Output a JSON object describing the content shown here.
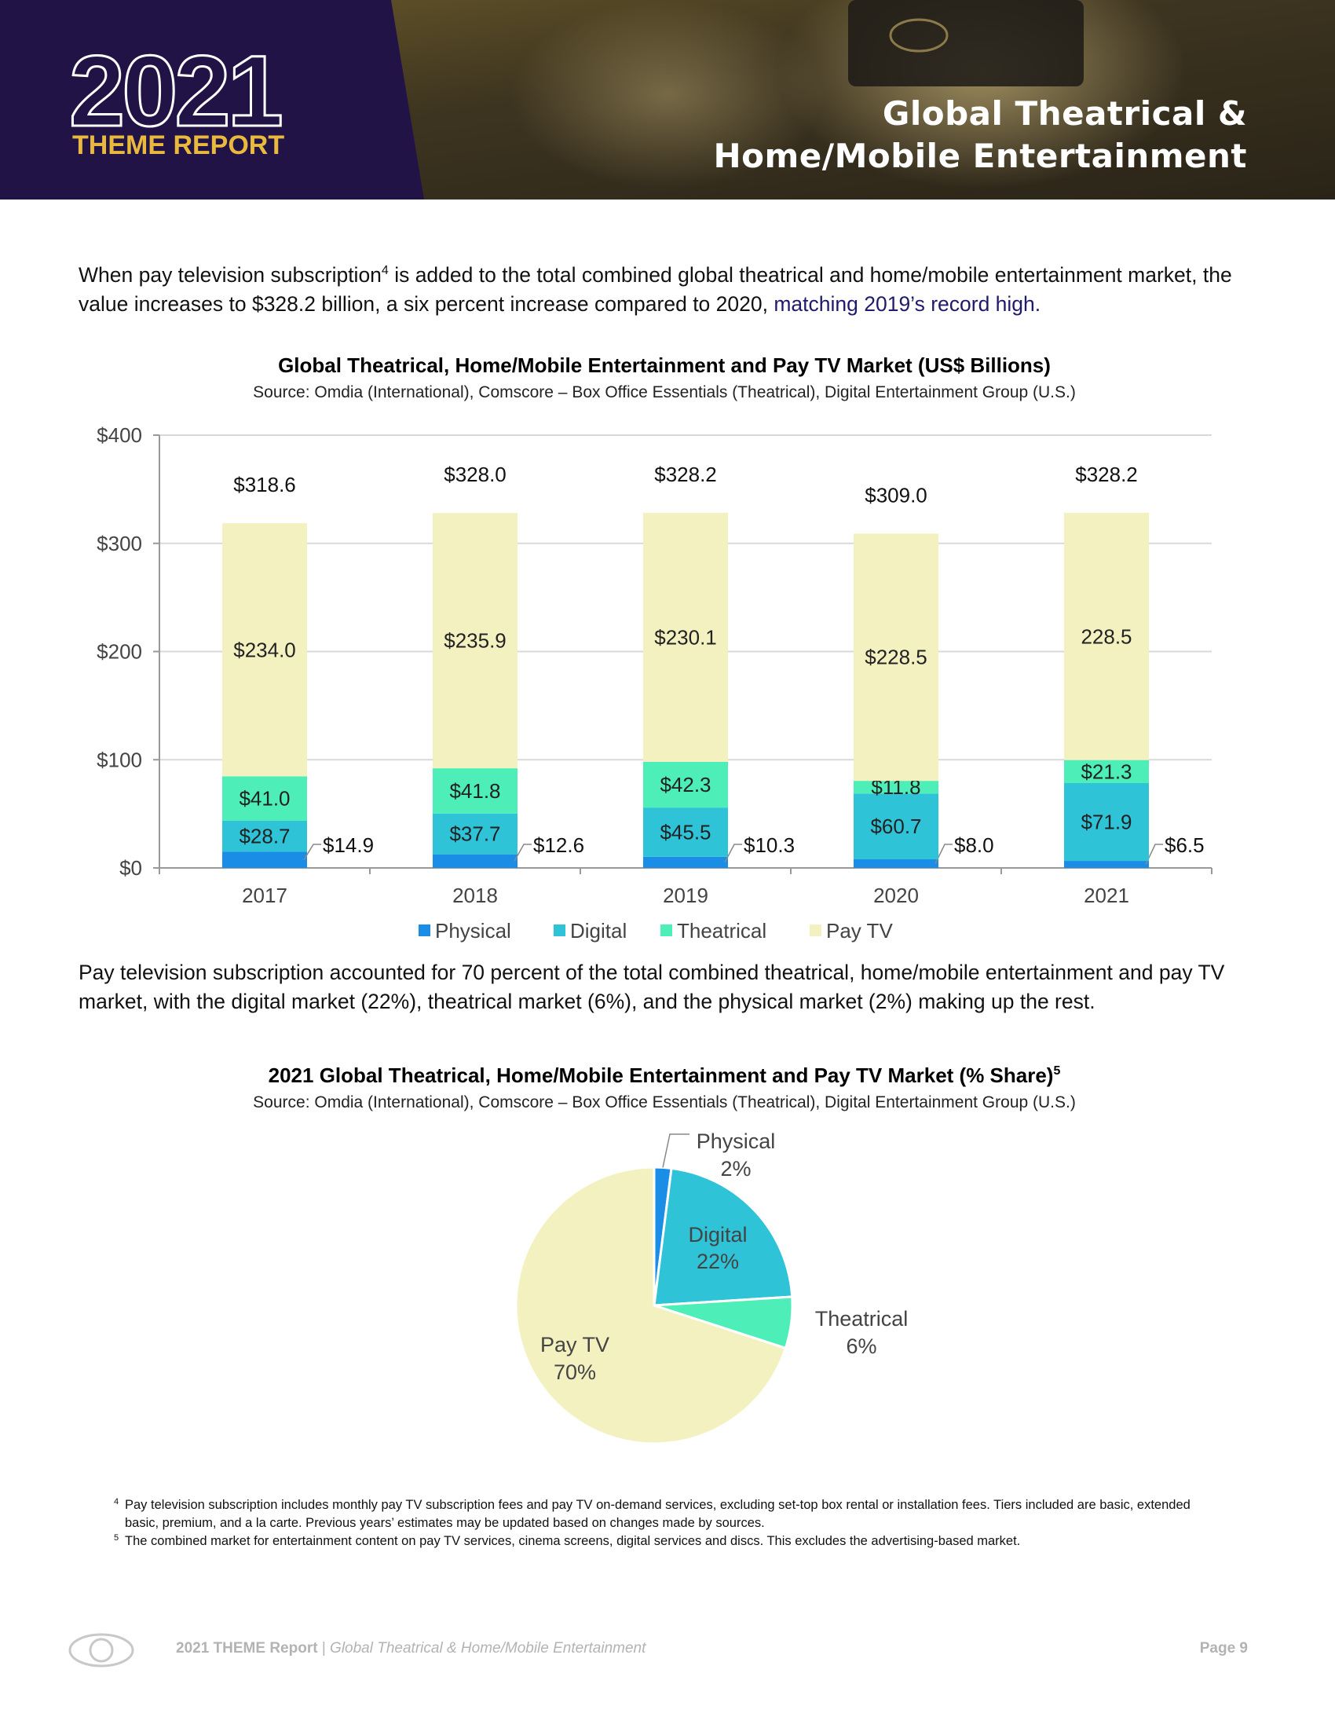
{
  "header": {
    "brand_year": "2021",
    "brand_name": "THEME REPORT",
    "title": "Global Theatrical & Home/Mobile Entertainment"
  },
  "paragraphs": [
    {
      "text": "When pay television subscription",
      "note": "4",
      "rest": " is added to the total combined global theatrical and home/mobile entertainment market, the value increases to $328.2 billion, a six percent increase compared to 2020, ",
      "highlight": "matching 2019’s record high."
    },
    {
      "text": "Pay television subscription accounted for 70 percent of the total combined theatrical, home/mobile entertainment and pay TV market, with the digital market (22%), theatrical market (6%), and the physical market (2%) making up the rest."
    }
  ],
  "chart_data": [
    {
      "type": "stacked_bar",
      "title": "Global Theatrical, Home/Mobile Entertainment and Pay TV Market (US$ Billions)",
      "source": "Source: Omdia (International), Comscore – Box Office Essentials (Theatrical), Digital Entertainment Group (U.S.)",
      "categories": [
        "2017",
        "2018",
        "2019",
        "2020",
        "2021"
      ],
      "series": [
        {
          "name": "Physical",
          "color": "#1a8ee6",
          "values": [
            14.9,
            12.6,
            10.3,
            8.0,
            6.5
          ],
          "value_labels": [
            "$14.9",
            "$12.6",
            "$10.3",
            "$8.0",
            "$6.5"
          ]
        },
        {
          "name": "Digital",
          "color": "#2fc3d8",
          "values": [
            28.7,
            37.7,
            45.5,
            60.7,
            71.9
          ],
          "value_labels": [
            "$28.7",
            "$37.7",
            "$45.5",
            "$60.7",
            "$71.9"
          ]
        },
        {
          "name": "Theatrical",
          "color": "#4eeeb8",
          "values": [
            41.0,
            41.8,
            42.3,
            11.8,
            21.3
          ],
          "value_labels": [
            "$41.0",
            "$41.8",
            "$42.3",
            "$11.8",
            "$21.3"
          ]
        },
        {
          "name": "Pay TV",
          "color": "#f4f1c1",
          "values": [
            234.0,
            235.9,
            230.1,
            228.5,
            228.5
          ],
          "value_labels": [
            "$234.0",
            "$235.9",
            "$230.1",
            "$228.5",
            "228.5"
          ]
        }
      ],
      "totals": [
        318.6,
        328.0,
        328.2,
        309.0,
        328.2
      ],
      "total_labels": [
        "$318.6",
        "$328.0",
        "$328.2",
        "$309.0",
        "$328.2"
      ],
      "ylim": [
        0,
        400
      ],
      "yticks": [
        {
          "value": 0,
          "label": "$0"
        },
        {
          "value": 100,
          "label": "$100"
        },
        {
          "value": 200,
          "label": "$200"
        },
        {
          "value": 300,
          "label": "$300"
        },
        {
          "value": 400,
          "label": "$400"
        }
      ],
      "grid": true,
      "legend": "bottom"
    },
    {
      "type": "pie",
      "title": "2021 Global Theatrical, Home/Mobile Entertainment and Pay TV Market (% Share)",
      "title_note": "5",
      "source": "Source: Omdia (International), Comscore – Box Office Essentials (Theatrical), Digital Entertainment Group (U.S.)",
      "categories": [
        "Physical",
        "Digital",
        "Theatrical",
        "Pay TV"
      ],
      "values": [
        2,
        22,
        6,
        70
      ],
      "value_labels": [
        "2%",
        "22%",
        "6%",
        "70%"
      ],
      "colors": [
        "#1a8ee6",
        "#2fc3d8",
        "#4eeeb8",
        "#f4f1c1"
      ]
    }
  ],
  "footnotes": [
    {
      "mark": "4",
      "text": "Pay television subscription includes monthly pay TV subscription fees and pay TV on-demand services, excluding set-top box rental or installation fees. Tiers included are basic, extended basic, premium, and a la carte. Previous years’ estimates may be updated based on changes made by sources."
    },
    {
      "mark": "5",
      "text": "The combined market for entertainment content on pay TV services, cinema screens, digital services and discs. This excludes the advertising-based market."
    }
  ],
  "footer": {
    "report": "2021 THEME Report",
    "separator": " | ",
    "section": "Global Theatrical & Home/Mobile Entertainment",
    "page": "Page 9"
  }
}
